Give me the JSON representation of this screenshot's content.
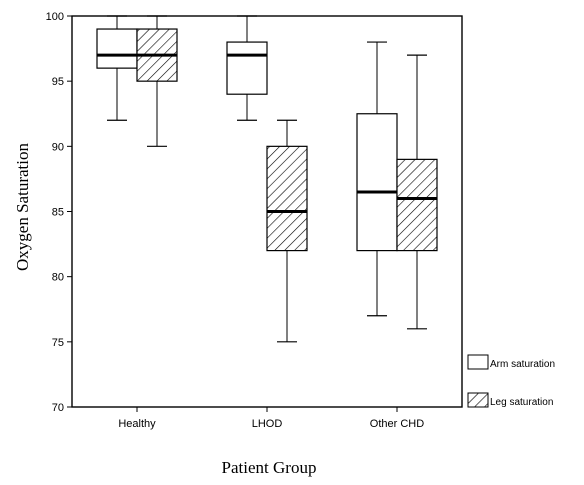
{
  "chart_data": {
    "type": "boxplot",
    "xlabel": "Patient Group",
    "ylabel": "Oxygen Saturation",
    "ylim": [
      70,
      100
    ],
    "yticks": [
      70,
      75,
      80,
      85,
      90,
      95,
      100
    ],
    "categories": [
      "Healthy",
      "LHOD",
      "Other CHD"
    ],
    "legend_position": "bottom-right, outside plot",
    "series": [
      {
        "name": "Arm saturation",
        "fill": "plain",
        "boxes": [
          {
            "category": "Healthy",
            "whisker_low": 92,
            "q1": 96,
            "median": 97,
            "q3": 99,
            "whisker_high": 100
          },
          {
            "category": "LHOD",
            "whisker_low": 92,
            "q1": 94,
            "median": 97,
            "q3": 98,
            "whisker_high": 100
          },
          {
            "category": "Other CHD",
            "whisker_low": 77,
            "q1": 82,
            "median": 86.5,
            "q3": 92.5,
            "whisker_high": 98
          }
        ]
      },
      {
        "name": "Leg saturation",
        "fill": "hatched",
        "boxes": [
          {
            "category": "Healthy",
            "whisker_low": 90,
            "q1": 95,
            "median": 97,
            "q3": 99,
            "whisker_high": 100
          },
          {
            "category": "LHOD",
            "whisker_low": 75,
            "q1": 82,
            "median": 85,
            "q3": 90,
            "whisker_high": 92
          },
          {
            "category": "Other CHD",
            "whisker_low": 76,
            "q1": 82,
            "median": 86,
            "q3": 89,
            "whisker_high": 97
          }
        ]
      }
    ]
  }
}
